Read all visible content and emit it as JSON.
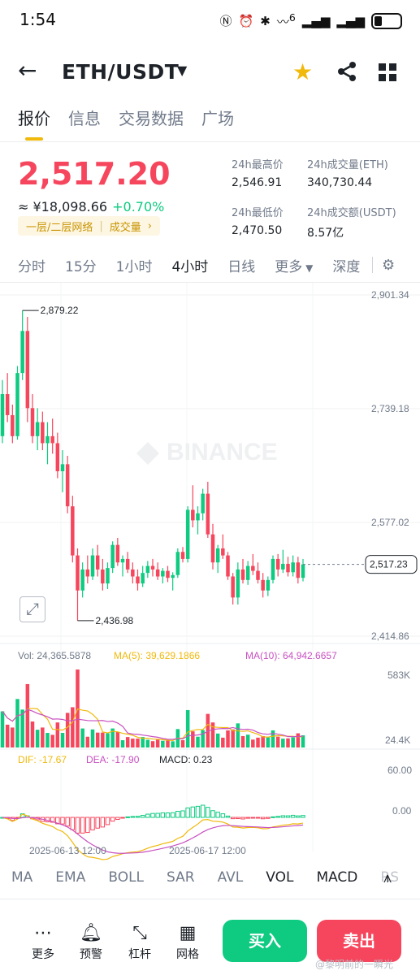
{
  "status": {
    "time": "1:54",
    "network": "6",
    "icons": [
      "nfc-icon",
      "alarm-icon",
      "bluetooth-icon",
      "wifi-icon",
      "signal-icon",
      "signal-icon",
      "battery-icon"
    ]
  },
  "header": {
    "pair": "ETH/USDT",
    "icons": [
      "back-arrow-icon",
      "caret-down-icon",
      "star-icon",
      "share-icon",
      "grid-icon"
    ],
    "accent": "#f0b90b"
  },
  "tabs": [
    "报价",
    "信息",
    "交易数据",
    "广场"
  ],
  "price": {
    "last": "2,517.20",
    "cny": "≈ ¥18,098.66",
    "change": "+0.70%",
    "tags": [
      "一层/二层网络",
      "成交量"
    ],
    "up_color": "#0ecb81",
    "down_color": "#f6465d"
  },
  "stats": {
    "high_label": "24h最高价",
    "high": "2,546.91",
    "low_label": "24h最低价",
    "low": "2,470.50",
    "vol_eth_label": "24h成交量(ETH)",
    "vol_eth": "340,730.44",
    "vol_usdt_label": "24h成交额(USDT)",
    "vol_usdt": "8.57亿"
  },
  "intervals": [
    "分时",
    "15分",
    "1小时",
    "4小时",
    "日线",
    "更多",
    "深度"
  ],
  "selected_interval": "4小时",
  "chart_data": {
    "type": "candlestick",
    "watermark": "BINANCE",
    "y_ticks": [
      "2,901.34",
      "2,739.18",
      "2,577.02",
      "2,414.86"
    ],
    "ylim": [
      2414.86,
      2901.34
    ],
    "high_label": "2,879.22",
    "low_label": "2,436.98",
    "last_label": "2,517.23",
    "last_value": 2517.23,
    "x_ticks": [
      "2025-06-13 12:00",
      "2025-06-17 12:00"
    ],
    "candles": [
      [
        2700,
        2780,
        2690,
        2760
      ],
      [
        2760,
        2790,
        2720,
        2730
      ],
      [
        2730,
        2745,
        2690,
        2700
      ],
      [
        2700,
        2800,
        2695,
        2790
      ],
      [
        2790,
        2879.22,
        2780,
        2850
      ],
      [
        2850,
        2870,
        2720,
        2740
      ],
      [
        2740,
        2760,
        2690,
        2700
      ],
      [
        2700,
        2740,
        2680,
        2720
      ],
      [
        2720,
        2735,
        2680,
        2690
      ],
      [
        2690,
        2720,
        2660,
        2700
      ],
      [
        2700,
        2725,
        2675,
        2690
      ],
      [
        2690,
        2705,
        2640,
        2650
      ],
      [
        2650,
        2680,
        2620,
        2660
      ],
      [
        2660,
        2672,
        2590,
        2600
      ],
      [
        2600,
        2615,
        2520,
        2530
      ],
      [
        2530,
        2540,
        2436.98,
        2480
      ],
      [
        2480,
        2520,
        2470,
        2510
      ],
      [
        2510,
        2530,
        2490,
        2500
      ],
      [
        2500,
        2540,
        2495,
        2530
      ],
      [
        2530,
        2545,
        2500,
        2510
      ],
      [
        2510,
        2525,
        2480,
        2490
      ],
      [
        2490,
        2520,
        2482,
        2512
      ],
      [
        2512,
        2550,
        2505,
        2545
      ],
      [
        2545,
        2555,
        2515,
        2520
      ],
      [
        2520,
        2530,
        2500,
        2525
      ],
      [
        2525,
        2535,
        2505,
        2510
      ],
      [
        2510,
        2520,
        2490,
        2500
      ],
      [
        2500,
        2510,
        2480,
        2490
      ],
      [
        2490,
        2515,
        2485,
        2505
      ],
      [
        2505,
        2522,
        2498,
        2515
      ],
      [
        2515,
        2525,
        2500,
        2510
      ],
      [
        2510,
        2520,
        2495,
        2500
      ],
      [
        2500,
        2512,
        2490,
        2508
      ],
      [
        2508,
        2515,
        2492,
        2498
      ],
      [
        2498,
        2506,
        2480,
        2502
      ],
      [
        2502,
        2540,
        2498,
        2535
      ],
      [
        2535,
        2542,
        2520,
        2525
      ],
      [
        2525,
        2600,
        2520,
        2595
      ],
      [
        2595,
        2630,
        2570,
        2580
      ],
      [
        2580,
        2600,
        2560,
        2590
      ],
      [
        2590,
        2625,
        2580,
        2618
      ],
      [
        2618,
        2635,
        2555,
        2560
      ],
      [
        2560,
        2575,
        2510,
        2520
      ],
      [
        2520,
        2545,
        2505,
        2540
      ],
      [
        2540,
        2560,
        2525,
        2530
      ],
      [
        2530,
        2535,
        2495,
        2500
      ],
      [
        2500,
        2505,
        2460,
        2470
      ],
      [
        2470,
        2520,
        2460,
        2510
      ],
      [
        2510,
        2525,
        2490,
        2495
      ],
      [
        2495,
        2522,
        2488,
        2515
      ],
      [
        2515,
        2532,
        2502,
        2508
      ],
      [
        2508,
        2520,
        2490,
        2495
      ],
      [
        2495,
        2505,
        2470,
        2480
      ],
      [
        2480,
        2500,
        2472,
        2495
      ],
      [
        2495,
        2530,
        2490,
        2525
      ],
      [
        2525,
        2532,
        2500,
        2510
      ],
      [
        2510,
        2538,
        2505,
        2518
      ],
      [
        2518,
        2528,
        2500,
        2506
      ],
      [
        2506,
        2530,
        2500,
        2520
      ],
      [
        2520,
        2528,
        2490,
        2498
      ],
      [
        2498,
        2525,
        2493,
        2517.23
      ]
    ]
  },
  "volume": {
    "vol_label": "Vol: 24,365.5878",
    "ma5_label": "MA(5): 39,629.1866",
    "ma10_label": "MA(10): 64,942.6657",
    "ticks": [
      "583K",
      "24.4K"
    ],
    "ma5_color": "#f0b90b",
    "ma10_color": "#c850c0"
  },
  "macd": {
    "dif_label": "DIF: -17.67",
    "dea_label": "DEA: -17.90",
    "macd_label": "MACD: 0.23",
    "ticks": [
      "60.00",
      "0.00"
    ]
  },
  "indicators": [
    "MA",
    "EMA",
    "BOLL",
    "SAR",
    "AVL",
    "VOL",
    "MACD",
    "RS"
  ],
  "active_indicators": [
    "VOL",
    "MACD"
  ],
  "bottom": {
    "items": [
      {
        "label": "更多",
        "icon": "more-icon"
      },
      {
        "label": "预警",
        "icon": "bell-icon"
      },
      {
        "label": "杠杆",
        "icon": "leverage-icon"
      },
      {
        "label": "网格",
        "icon": "grid-bot-icon"
      }
    ],
    "buy": "买入",
    "sell": "卖出"
  },
  "watermark_text": "@黎明前的一瞬光"
}
